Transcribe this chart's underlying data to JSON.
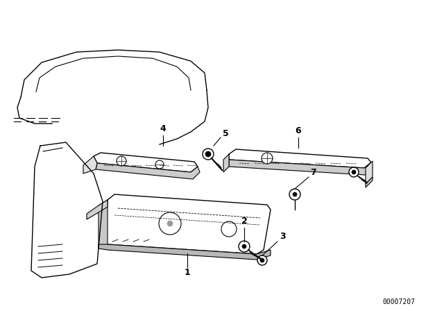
{
  "background_color": "#ffffff",
  "line_color": "#000000",
  "fig_width": 6.4,
  "fig_height": 4.48,
  "dpi": 100,
  "watermark_text": "00007207",
  "watermark_fontsize": 7,
  "label_fontsize": 9
}
